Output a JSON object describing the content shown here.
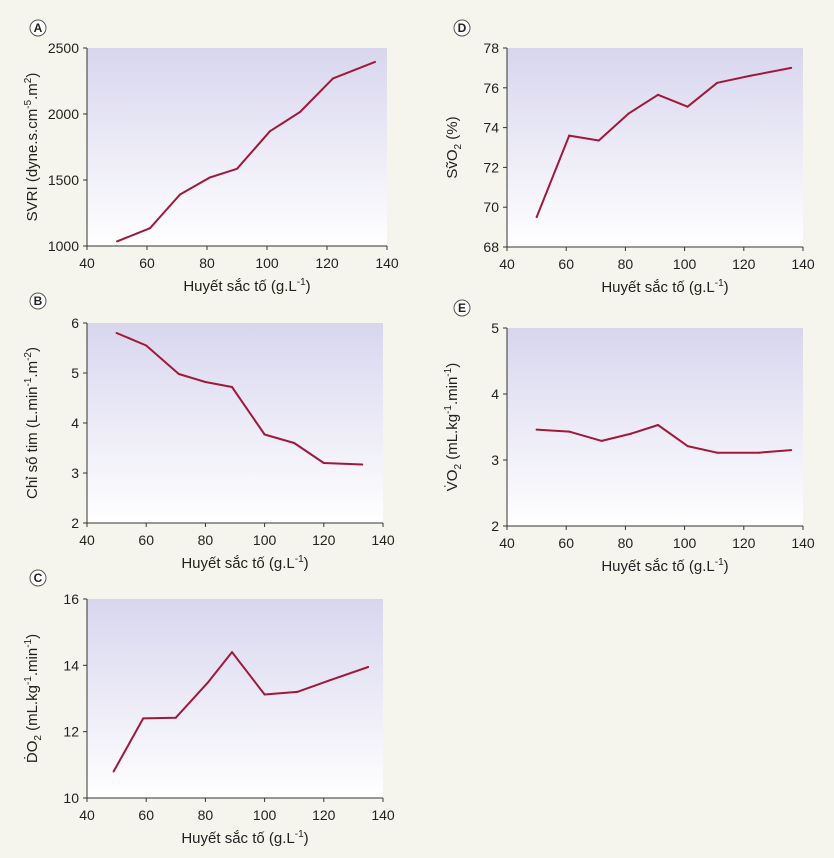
{
  "colors": {
    "line": "#a0183a",
    "background": "#f5f4ed",
    "plot_top": "#d8d6ee",
    "plot_bottom": "#ffffff",
    "axis": "#333333"
  },
  "chart_data": [
    {
      "id": "A",
      "panel_label": "A",
      "type": "line",
      "xlabel_main": "Huyết sắc tố (g.L",
      "xlabel_sup": "-1",
      "xlabel_end": ")",
      "ylabel": [
        {
          "t": "SVRI (dyne.s.cm"
        },
        {
          "t": "-5",
          "sup": true
        },
        {
          "t": ".m"
        },
        {
          "t": "2",
          "sup": true
        },
        {
          "t": ")"
        }
      ],
      "xlim": [
        40,
        140
      ],
      "ylim": [
        1000,
        2500
      ],
      "xticks": [
        40,
        60,
        80,
        100,
        120,
        140
      ],
      "yticks": [
        1000,
        1500,
        2000,
        2500
      ],
      "x": [
        50,
        61,
        71,
        81,
        90,
        101,
        111,
        122,
        136
      ],
      "y": [
        1035,
        1135,
        1390,
        1520,
        1585,
        1870,
        2015,
        2270,
        2395
      ]
    },
    {
      "id": "B",
      "panel_label": "B",
      "type": "line",
      "xlabel_main": "Huyết sắc tố (g.L",
      "xlabel_sup": "-1",
      "xlabel_end": ")",
      "ylabel": [
        {
          "t": "Chỉ số tim (L.min"
        },
        {
          "t": "-1",
          "sup": true
        },
        {
          "t": ".m"
        },
        {
          "t": "-2",
          "sup": true
        },
        {
          "t": ")"
        }
      ],
      "xlim": [
        40,
        140
      ],
      "ylim": [
        2,
        6
      ],
      "xticks": [
        40,
        60,
        80,
        100,
        120,
        140
      ],
      "yticks": [
        2,
        3,
        4,
        5,
        6
      ],
      "x": [
        50,
        60,
        71,
        80,
        89,
        100,
        110,
        120,
        133
      ],
      "y": [
        5.8,
        5.55,
        4.98,
        4.82,
        4.72,
        3.77,
        3.6,
        3.2,
        3.17
      ]
    },
    {
      "id": "C",
      "panel_label": "C",
      "type": "line",
      "xlabel_main": "Huyết sắc tố (g.L",
      "xlabel_sup": "-1",
      "xlabel_end": ")",
      "ylabel": [
        {
          "t": "ḊO"
        },
        {
          "t": "2",
          "sub": true
        },
        {
          "t": " (mL.kg"
        },
        {
          "t": "-1",
          "sup": true
        },
        {
          "t": ".min"
        },
        {
          "t": "-1",
          "sup": true
        },
        {
          "t": ")"
        }
      ],
      "xlim": [
        40,
        140
      ],
      "ylim": [
        10,
        16
      ],
      "xticks": [
        40,
        60,
        80,
        100,
        120,
        140
      ],
      "yticks": [
        10,
        12,
        14,
        16
      ],
      "x": [
        49,
        59,
        70,
        81,
        89,
        100,
        111,
        122,
        135
      ],
      "y": [
        10.8,
        12.4,
        12.42,
        13.5,
        14.4,
        13.12,
        13.2,
        13.55,
        13.95
      ]
    },
    {
      "id": "D",
      "panel_label": "D",
      "type": "line",
      "xlabel_main": "Huyết sắc tố (g.L",
      "xlabel_sup": "-1",
      "xlabel_end": ")",
      "ylabel": [
        {
          "t": "SṽO"
        },
        {
          "t": "2",
          "sub": true
        },
        {
          "t": " (%)"
        }
      ],
      "xlim": [
        40,
        140
      ],
      "ylim": [
        68,
        78
      ],
      "xticks": [
        40,
        60,
        80,
        100,
        120,
        140
      ],
      "yticks": [
        68,
        70,
        72,
        74,
        76,
        78
      ],
      "x": [
        50,
        61,
        71,
        81,
        91,
        101,
        111,
        122,
        136
      ],
      "y": [
        69.5,
        73.6,
        73.35,
        74.7,
        75.65,
        75.05,
        76.25,
        76.6,
        77.0
      ]
    },
    {
      "id": "E",
      "panel_label": "E",
      "type": "line",
      "xlabel_main": "Huyết sắc tố (g.L",
      "xlabel_sup": "-1",
      "xlabel_end": ")",
      "ylabel": [
        {
          "t": "V̇O"
        },
        {
          "t": "2",
          "sub": true
        },
        {
          "t": " (mL.kg"
        },
        {
          "t": "-1",
          "sup": true
        },
        {
          "t": ".min"
        },
        {
          "t": "-1",
          "sup": true
        },
        {
          "t": ")"
        }
      ],
      "xlim": [
        40,
        140
      ],
      "ylim": [
        2,
        5
      ],
      "xticks": [
        40,
        60,
        80,
        100,
        120,
        140
      ],
      "yticks": [
        2,
        3,
        4,
        5
      ],
      "x": [
        50,
        61,
        72,
        82,
        91,
        101,
        111,
        125,
        136
      ],
      "y": [
        3.46,
        3.43,
        3.29,
        3.4,
        3.53,
        3.21,
        3.11,
        3.11,
        3.15
      ]
    }
  ]
}
